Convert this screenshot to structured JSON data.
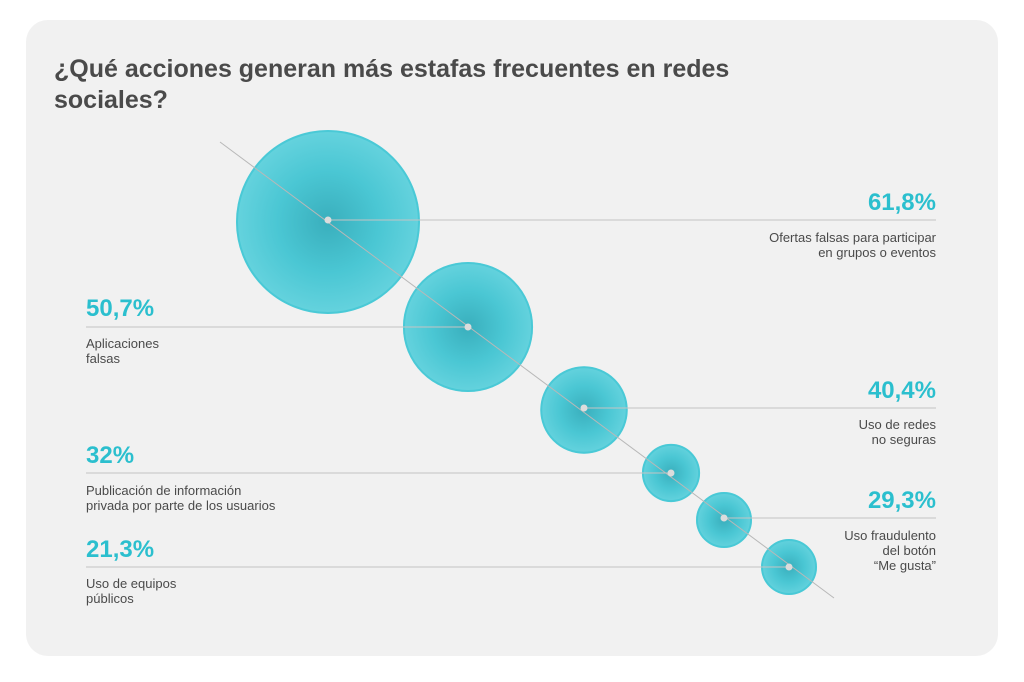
{
  "chart_data": {
    "type": "bubble",
    "title": "¿Qué acciones generan más estafas frecuentes en redes sociales?",
    "unit": "%",
    "colors": {
      "bubble": "#2bbfce",
      "value_text": "#2bbfce",
      "label_text": "#4a4a4a"
    },
    "points": [
      {
        "value": 61.8,
        "value_label": "61,8%",
        "label_lines": [
          "Ofertas falsas para participar",
          "en grupos o eventos"
        ]
      },
      {
        "value": 50.7,
        "value_label": "50,7%",
        "label_lines": [
          "Aplicaciones",
          "falsas"
        ]
      },
      {
        "value": 40.4,
        "value_label": "40,4%",
        "label_lines": [
          "Uso de redes",
          "no seguras"
        ]
      },
      {
        "value": 32,
        "value_label": "32%",
        "label_lines": [
          "Publicación de información",
          "privada por parte de los usuarios"
        ]
      },
      {
        "value": 29.3,
        "value_label": "29,3%",
        "label_lines": [
          "Uso fraudulento",
          "del botón",
          "“Me gusta”"
        ]
      },
      {
        "value": 21.3,
        "value_label": "21,3%",
        "label_lines": [
          "Uso de equipos",
          "públicos"
        ]
      }
    ]
  }
}
